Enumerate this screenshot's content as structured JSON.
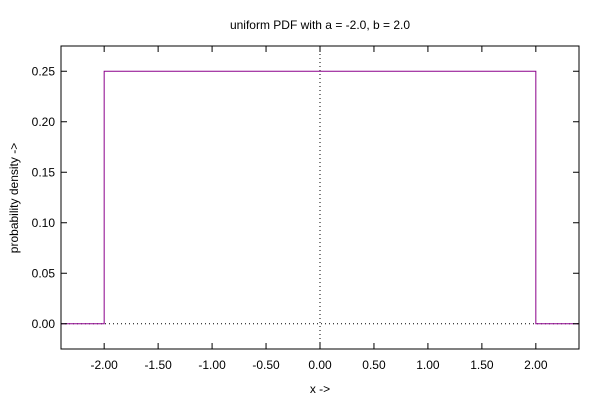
{
  "chart_data": {
    "type": "line",
    "title": "uniform PDF with a = -2.0, b = 2.0",
    "xlabel": "x ->",
    "ylabel": "probability density ->",
    "xlim": [
      -2.4,
      2.4
    ],
    "ylim": [
      -0.025,
      0.275
    ],
    "x_ticks": [
      -2.0,
      -1.5,
      -1.0,
      -0.5,
      0.0,
      0.5,
      1.0,
      1.5,
      2.0
    ],
    "x_tick_labels": [
      "-2.00",
      "-1.50",
      "-1.00",
      "-0.50",
      "0.00",
      "0.50",
      "1.00",
      "1.50",
      "2.00"
    ],
    "y_ticks": [
      0.0,
      0.05,
      0.1,
      0.15,
      0.2,
      0.25
    ],
    "y_tick_labels": [
      "0.00",
      "0.05",
      "0.10",
      "0.15",
      "0.20",
      "0.25"
    ],
    "zero_axes": "dotted",
    "grid": false,
    "series": [
      {
        "color": "#8b008b",
        "x": [
          -2.4,
          -2.0,
          -2.0,
          2.0,
          2.0,
          2.4
        ],
        "y": [
          0.0,
          0.0,
          0.25,
          0.25,
          0.0,
          0.0
        ]
      }
    ]
  }
}
